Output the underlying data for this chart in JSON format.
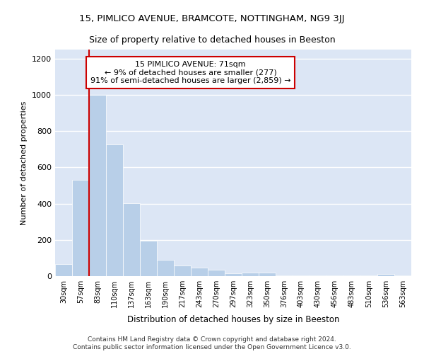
{
  "title1": "15, PIMLICO AVENUE, BRAMCOTE, NOTTINGHAM, NG9 3JJ",
  "title2": "Size of property relative to detached houses in Beeston",
  "xlabel": "Distribution of detached houses by size in Beeston",
  "ylabel": "Number of detached properties",
  "footer1": "Contains HM Land Registry data © Crown copyright and database right 2024.",
  "footer2": "Contains public sector information licensed under the Open Government Licence v3.0.",
  "annotation_line1": "15 PIMLICO AVENUE: 71sqm",
  "annotation_line2": "← 9% of detached houses are smaller (277)",
  "annotation_line3": "91% of semi-detached houses are larger (2,859) →",
  "bar_color": "#b8cfe8",
  "bar_edge_color": "#b8cfe8",
  "line_color": "#cc0000",
  "background_color": "#dce6f5",
  "categories": [
    "30sqm",
    "57sqm",
    "83sqm",
    "110sqm",
    "137sqm",
    "163sqm",
    "190sqm",
    "217sqm",
    "243sqm",
    "270sqm",
    "297sqm",
    "323sqm",
    "350sqm",
    "376sqm",
    "403sqm",
    "430sqm",
    "456sqm",
    "483sqm",
    "510sqm",
    "536sqm",
    "563sqm"
  ],
  "values": [
    68,
    530,
    1000,
    725,
    403,
    197,
    90,
    60,
    45,
    35,
    15,
    20,
    20,
    2,
    2,
    2,
    2,
    2,
    2,
    10,
    2
  ],
  "red_line_x": 1.5,
  "ylim": [
    0,
    1250
  ],
  "yticks": [
    0,
    200,
    400,
    600,
    800,
    1000,
    1200
  ]
}
